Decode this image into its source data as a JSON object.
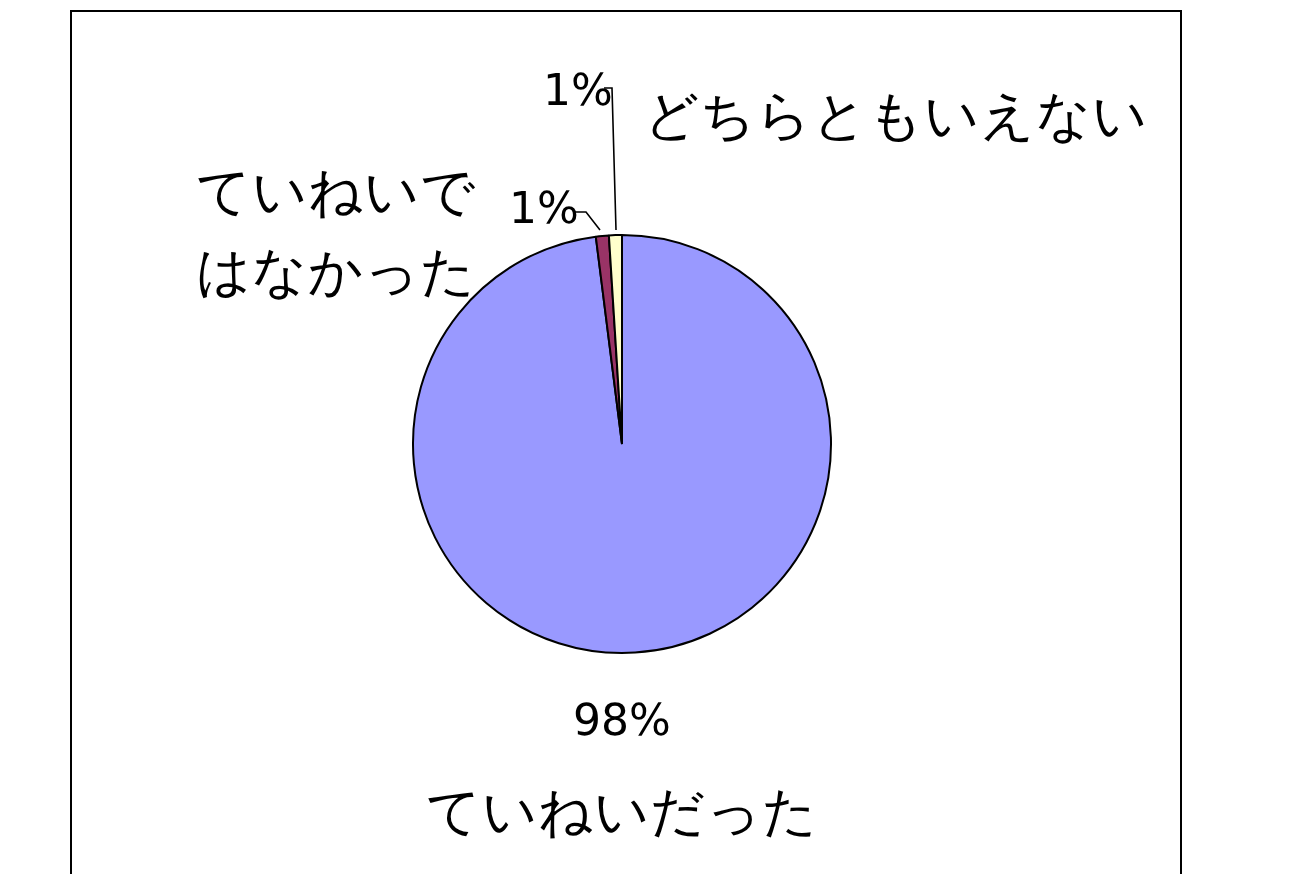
{
  "chart_data": {
    "type": "pie",
    "categories": [
      "ていねいだった",
      "ていねいではなかった",
      "どちらともいえない"
    ],
    "values": [
      98,
      1,
      1
    ],
    "colors": [
      "#9999ff",
      "#993366",
      "#ffffcc"
    ],
    "value_labels": [
      "98%",
      "1%",
      "1%"
    ],
    "legend": false
  }
}
